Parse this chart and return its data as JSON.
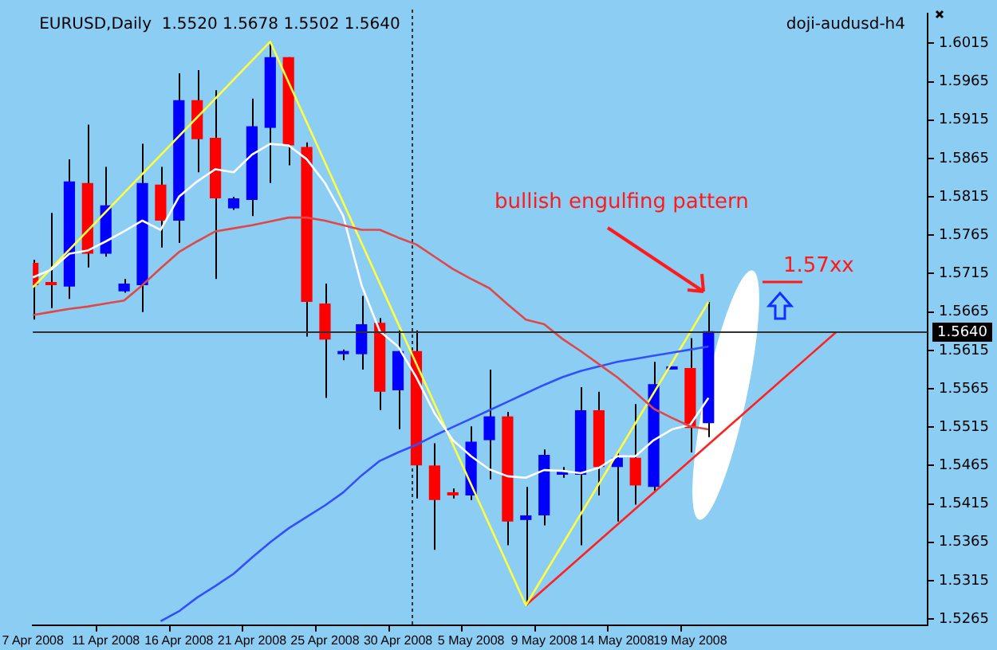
{
  "chart_data": {
    "type": "candlestick",
    "title": "EURUSD,Daily  1.5520 1.5678 1.5502 1.5640",
    "subtitle": "doji-audusd-h4",
    "categories": [
      "7 Apr 2008",
      null,
      null,
      null,
      "11 Apr 2008",
      null,
      null,
      null,
      "16 Apr 2008",
      null,
      null,
      null,
      "21 Apr 2008",
      null,
      null,
      null,
      "25 Apr 2008",
      null,
      null,
      null,
      "30 Apr 2008",
      null,
      null,
      null,
      "5 May 2008",
      null,
      null,
      null,
      "9 May 2008",
      null,
      null,
      null,
      "14 May 2008",
      null,
      null,
      null,
      "19 May 2008",
      null,
      null,
      null,
      null,
      null,
      null,
      null,
      null,
      null,
      null,
      null,
      null,
      null
    ],
    "ohlc": [
      [
        1.5729,
        1.5733,
        1.5655,
        1.57
      ],
      [
        1.5702,
        1.5794,
        1.567,
        1.57
      ],
      [
        1.5698,
        1.5864,
        1.5682,
        1.5835
      ],
      [
        1.5833,
        1.5909,
        1.5723,
        1.5741
      ],
      [
        1.5741,
        1.5854,
        1.5737,
        1.5804
      ],
      [
        1.5692,
        1.5708,
        1.569,
        1.5702
      ],
      [
        1.57,
        1.5884,
        1.5665,
        1.5833
      ],
      [
        1.5831,
        1.5854,
        1.5749,
        1.5784
      ],
      [
        1.5784,
        1.5976,
        1.5755,
        1.5941
      ],
      [
        1.5941,
        1.598,
        1.5847,
        1.589
      ],
      [
        1.5892,
        1.5954,
        1.5708,
        1.5813
      ],
      [
        1.58,
        1.5815,
        1.5798,
        1.5813
      ],
      [
        1.5811,
        1.5943,
        1.579,
        1.5907
      ],
      [
        1.5905,
        1.6017,
        1.5833,
        1.5997
      ],
      [
        1.5997,
        1.5997,
        1.5856,
        1.5882
      ],
      [
        1.588,
        1.5886,
        1.5633,
        1.5678
      ],
      [
        1.5676,
        1.5702,
        1.5553,
        1.5629
      ],
      [
        1.561,
        1.5616,
        1.5602,
        1.5612
      ],
      [
        1.561,
        1.5686,
        1.559,
        1.5649
      ],
      [
        1.5651,
        1.5657,
        1.5537,
        1.5561
      ],
      [
        1.5563,
        1.5641,
        1.5512,
        1.5614
      ],
      [
        1.5614,
        1.5641,
        1.5422,
        1.5465
      ],
      [
        1.5465,
        1.5494,
        1.5355,
        1.542
      ],
      [
        1.543,
        1.5435,
        1.5422,
        1.5426
      ],
      [
        1.5426,
        1.5516,
        1.542,
        1.5496
      ],
      [
        1.5498,
        1.559,
        1.5447,
        1.5529
      ],
      [
        1.5529,
        1.5535,
        1.5361,
        1.5392
      ],
      [
        1.5394,
        1.5437,
        1.5283,
        1.54
      ],
      [
        1.54,
        1.5486,
        1.5387,
        1.5479
      ],
      [
        1.5453,
        1.5463,
        1.5449,
        1.5455
      ],
      [
        1.5453,
        1.5567,
        1.5361,
        1.5537
      ],
      [
        1.5537,
        1.5561,
        1.5426,
        1.5463
      ],
      [
        1.5463,
        1.5482,
        1.5392,
        1.5475
      ],
      [
        1.5475,
        1.5545,
        1.5414,
        1.5439
      ],
      [
        1.5437,
        1.56,
        1.5432,
        1.5571
      ],
      [
        1.559,
        1.5594,
        1.559,
        1.5592
      ],
      [
        1.5592,
        1.5631,
        1.5482,
        1.5514
      ],
      [
        1.552,
        1.5678,
        1.5502,
        1.564
      ],
      null,
      null,
      null,
      null,
      null,
      null,
      null,
      null,
      null,
      null,
      null,
      null
    ],
    "colors": [
      "#ff0000",
      "#ff0000",
      "#0000ff",
      "#ff0000",
      "#0000ff",
      "#0000ff",
      "#0000ff",
      "#ff0000",
      "#0000ff",
      "#ff0000",
      "#ff0000",
      "#0000ff",
      "#0000ff",
      "#0000ff",
      "#ff0000",
      "#ff0000",
      "#ff0000",
      "#0000ff",
      "#0000ff",
      "#ff0000",
      "#0000ff",
      "#ff0000",
      "#ff0000",
      "#ff0000",
      "#0000ff",
      "#0000ff",
      "#ff0000",
      "#0000ff",
      "#0000ff",
      "#0000ff",
      "#0000ff",
      "#ff0000",
      "#0000ff",
      "#ff0000",
      "#0000ff",
      "#0000ff",
      "#ff0000",
      "#0000ff",
      null,
      null,
      null,
      null,
      null,
      null,
      null,
      null,
      null,
      null,
      null,
      null
    ],
    "series": [
      {
        "type": "line",
        "color": "#e04848",
        "values": [
          1.5661,
          1.5665,
          1.5669,
          1.5672,
          1.5676,
          1.568,
          1.57,
          1.5722,
          1.5743,
          1.5757,
          1.577,
          1.5774,
          1.5778,
          1.5783,
          1.5788,
          1.5788,
          1.5784,
          1.5778,
          1.5772,
          1.5772,
          1.5762,
          1.5753,
          1.5737,
          1.5721,
          1.5708,
          1.5696,
          1.5675,
          1.5655,
          1.5649,
          1.563,
          1.5614,
          1.5597,
          1.558,
          1.556,
          1.5539,
          1.5527,
          1.5516,
          1.5512,
          null,
          null,
          null,
          null,
          null,
          null,
          null,
          null,
          null,
          null,
          null,
          null
        ]
      },
      {
        "type": "line",
        "color": "#ffffff",
        "values": [
          1.571,
          1.572,
          1.5741,
          1.5745,
          1.5757,
          1.577,
          1.5784,
          1.5772,
          1.5815,
          1.5835,
          1.5851,
          1.5847,
          1.587,
          1.5884,
          1.5882,
          1.5864,
          1.5833,
          1.579,
          1.57,
          1.564,
          1.562,
          1.558,
          1.5533,
          1.5498,
          1.5477,
          1.546,
          1.5451,
          1.5449,
          1.5459,
          1.5458,
          1.5455,
          1.5462,
          1.5477,
          1.5477,
          1.5498,
          1.5512,
          1.5518,
          1.5553,
          null,
          null,
          null,
          null,
          null,
          null,
          null,
          null,
          null,
          null,
          null,
          null
        ]
      },
      {
        "type": "line",
        "color": "#3050ff",
        "values": [
          null,
          null,
          null,
          null,
          null,
          null,
          null,
          1.5262,
          1.5275,
          1.5293,
          1.5308,
          1.5324,
          1.5345,
          1.5365,
          1.5383,
          1.5398,
          1.5413,
          1.543,
          1.5452,
          1.5471,
          1.5482,
          1.5492,
          1.5504,
          1.5515,
          1.5526,
          1.5537,
          1.5548,
          1.5559,
          1.557,
          1.558,
          1.5588,
          1.5594,
          1.56,
          1.5604,
          1.5608,
          1.5612,
          1.5616,
          1.562,
          null,
          null,
          null,
          null,
          null,
          null,
          null,
          null,
          null,
          null,
          null,
          null
        ]
      },
      {
        "type": "line",
        "color": "#ffff40",
        "values": [
          1.5697,
          null,
          null,
          null,
          null,
          null,
          null,
          null,
          null,
          null,
          null,
          null,
          null,
          1.6017,
          null,
          null,
          null,
          null,
          null,
          null,
          null,
          null,
          null,
          null,
          null,
          null,
          null,
          1.5283,
          null,
          null,
          null,
          null,
          null,
          null,
          null,
          null,
          null,
          1.5678,
          null,
          null,
          null,
          null,
          null,
          null,
          null,
          null,
          null,
          null,
          null,
          null
        ]
      },
      {
        "type": "line",
        "color": "#ff2020",
        "values": [
          null,
          null,
          null,
          null,
          null,
          null,
          null,
          null,
          null,
          null,
          null,
          null,
          null,
          null,
          null,
          null,
          null,
          null,
          null,
          null,
          null,
          null,
          null,
          null,
          null,
          null,
          null,
          1.5283,
          null,
          null,
          null,
          null,
          null,
          null,
          null,
          null,
          null,
          null,
          null,
          null,
          null,
          null,
          null,
          null,
          1.5639,
          null,
          null,
          null,
          null,
          null
        ]
      }
    ],
    "ylim": [
      1.5257,
      1.6054
    ],
    "yticks": [
      1.5265,
      1.5315,
      1.5365,
      1.5415,
      1.5465,
      1.5515,
      1.5565,
      1.5615,
      1.5665,
      1.5715,
      1.5765,
      1.5815,
      1.5865,
      1.5915,
      1.5965,
      1.6015
    ],
    "ref_lines": [
      {
        "axis": "y",
        "value": 1.564,
        "label": "1.5640",
        "color": "#303030"
      }
    ],
    "annotations": [
      "bullish engulfing pattern",
      "1.57xx"
    ],
    "legend": false
  }
}
